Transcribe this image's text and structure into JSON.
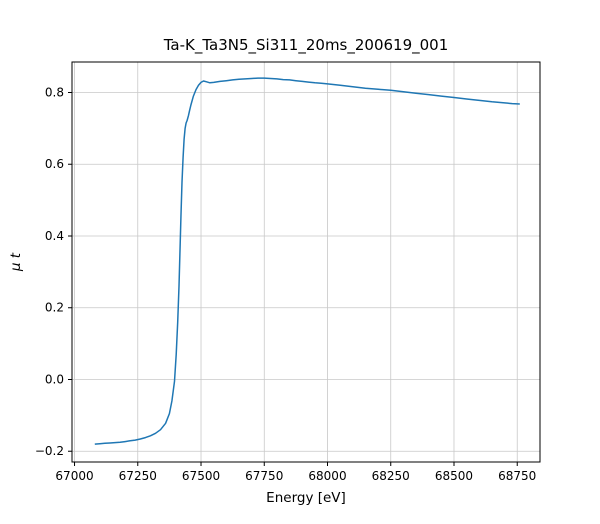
{
  "chart_data": {
    "type": "line",
    "title": "Ta-K_Ta3N5_Si311_20ms_200619_001",
    "xlabel": "Energy [eV]",
    "ylabel": "μ t",
    "xlim": [
      66990,
      68840
    ],
    "ylim": [
      -0.23,
      0.885
    ],
    "xticks": [
      67000,
      67250,
      67500,
      67750,
      68000,
      68250,
      68500,
      68750
    ],
    "xtick_labels": [
      "67000",
      "67250",
      "67500",
      "67750",
      "68000",
      "68250",
      "68500",
      "68750"
    ],
    "yticks": [
      -0.2,
      0.0,
      0.2,
      0.4,
      0.6,
      0.8
    ],
    "ytick_labels": [
      "−0.2",
      "0.0",
      "0.2",
      "0.4",
      "0.6",
      "0.8"
    ],
    "grid": true,
    "legend": "none",
    "grid_color": "#c8c8c8",
    "line_color": "#1f77b4",
    "series": [
      {
        "name": "mu_t_absorption",
        "x": [
          67080,
          67100,
          67120,
          67140,
          67160,
          67180,
          67200,
          67220,
          67240,
          67260,
          67280,
          67300,
          67320,
          67340,
          67360,
          67375,
          67385,
          67395,
          67402,
          67408,
          67413,
          67417,
          67421,
          67425,
          67429,
          67433,
          67437,
          67441,
          67445,
          67450,
          67455,
          67460,
          67470,
          67480,
          67490,
          67500,
          67510,
          67520,
          67535,
          67550,
          67575,
          67600,
          67625,
          67650,
          67675,
          67700,
          67725,
          67750,
          67775,
          67800,
          67825,
          67850,
          67875,
          67900,
          67925,
          67950,
          67975,
          68000,
          68050,
          68100,
          68150,
          68200,
          68250,
          68300,
          68350,
          68400,
          68450,
          68500,
          68550,
          68600,
          68650,
          68700,
          68730,
          68760
        ],
        "y": [
          -0.18,
          -0.179,
          -0.178,
          -0.177,
          -0.176,
          -0.175,
          -0.173,
          -0.171,
          -0.169,
          -0.166,
          -0.162,
          -0.157,
          -0.15,
          -0.14,
          -0.122,
          -0.095,
          -0.06,
          -0.005,
          0.07,
          0.16,
          0.26,
          0.36,
          0.46,
          0.55,
          0.62,
          0.67,
          0.7,
          0.715,
          0.722,
          0.735,
          0.75,
          0.765,
          0.79,
          0.808,
          0.82,
          0.828,
          0.832,
          0.83,
          0.827,
          0.828,
          0.831,
          0.833,
          0.835,
          0.837,
          0.838,
          0.839,
          0.84,
          0.84,
          0.839,
          0.838,
          0.836,
          0.835,
          0.833,
          0.831,
          0.829,
          0.827,
          0.826,
          0.824,
          0.82,
          0.816,
          0.812,
          0.809,
          0.806,
          0.802,
          0.798,
          0.794,
          0.79,
          0.786,
          0.782,
          0.778,
          0.774,
          0.771,
          0.769,
          0.768
        ]
      }
    ]
  }
}
